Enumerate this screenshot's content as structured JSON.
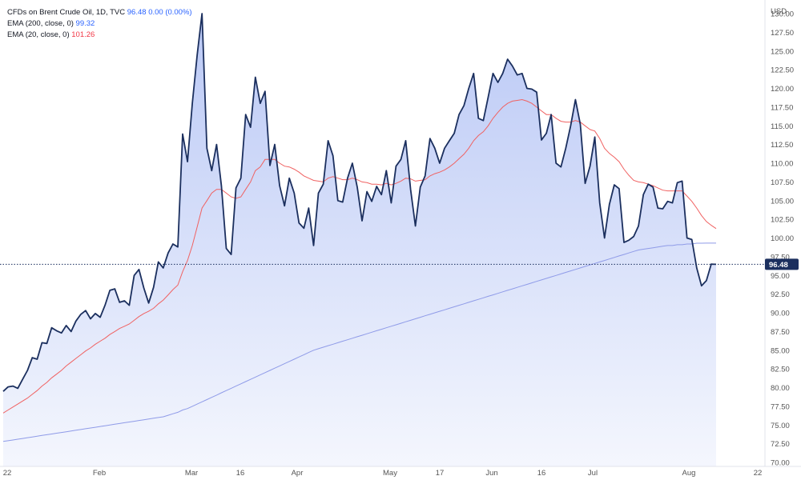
{
  "legend": {
    "main_label": "CFDs on Brent Crude Oil, 1D, TVC",
    "main_value": "96.48",
    "main_change": "0.00 (0.00%)",
    "ema200_label": "EMA (200, close, 0)",
    "ema200_value": "99.32",
    "ema20_label": "EMA (20, close, 0)",
    "ema20_value": "101.26"
  },
  "currency": "USD",
  "last_price_label": "96.48",
  "colors": {
    "price": "#1b2f5e",
    "area_top": "#b7c6f5",
    "ema200": "#8f9be8",
    "ema20": "#f06262",
    "last_label_bg": "#1b2f5e"
  },
  "chart_data": {
    "type": "line",
    "x_tick_labels": [
      "22",
      "Feb",
      "Mar",
      "16",
      "Apr",
      "May",
      "17",
      "Jun",
      "16",
      "Jul",
      "Aug",
      "22"
    ],
    "y_tick_labels": [
      "130.00",
      "127.50",
      "125.00",
      "122.50",
      "120.00",
      "117.50",
      "115.00",
      "112.50",
      "110.00",
      "107.50",
      "105.00",
      "102.50",
      "100.00",
      "97.50",
      "95.00",
      "92.50",
      "90.00",
      "87.50",
      "85.00",
      "82.50",
      "80.00",
      "77.50",
      "75.00",
      "72.50",
      "70.00"
    ],
    "ylim": [
      69.5,
      130.5
    ],
    "last_value": 96.48,
    "series": [
      {
        "name": "CFDs on Brent Crude Oil",
        "values": [
          79.5,
          80.1,
          80.2,
          79.9,
          81.1,
          82.3,
          84.0,
          83.8,
          86.0,
          85.9,
          88.0,
          87.6,
          87.3,
          88.3,
          87.5,
          88.9,
          89.8,
          90.3,
          89.2,
          89.9,
          89.4,
          91.0,
          93.0,
          93.2,
          91.4,
          91.6,
          91.0,
          95.0,
          95.8,
          93.3,
          91.3,
          93.4,
          96.8,
          96.0,
          98.0,
          99.2,
          98.8,
          113.9,
          110.2,
          118.0,
          124.5,
          130.0,
          112.0,
          109.0,
          112.5,
          107.0,
          98.6,
          97.8,
          106.7,
          108.0,
          116.5,
          114.8,
          121.5,
          118.0,
          119.6,
          109.7,
          112.5,
          107.0,
          104.3,
          108.0,
          106.0,
          102.0,
          101.3,
          104.0,
          99.0,
          106.0,
          107.2,
          113.0,
          111.0,
          105.0,
          104.8,
          108.0,
          110.0,
          106.8,
          102.3,
          106.2,
          104.9,
          106.9,
          105.8,
          109.0,
          104.7,
          109.6,
          110.5,
          113.0,
          106.5,
          101.6,
          106.8,
          108.3,
          113.3,
          112.0,
          110.0,
          112.0,
          113.0,
          114.0,
          116.5,
          117.7,
          120.0,
          122.0,
          116.0,
          115.7,
          118.8,
          122.0,
          120.8,
          122.0,
          123.9,
          123.0,
          121.8,
          122.0,
          120.0,
          119.9,
          119.5,
          113.1,
          114.0,
          116.5,
          110.0,
          109.5,
          112.0,
          115.0,
          118.5,
          115.2,
          107.3,
          109.6,
          113.5,
          104.7,
          100.0,
          104.5,
          107.1,
          106.6,
          99.4,
          99.7,
          100.2,
          101.6,
          105.8,
          107.2,
          106.8,
          104.0,
          103.9,
          104.9,
          104.7,
          107.4,
          107.6,
          100.0,
          99.8,
          96.0,
          93.6,
          94.3,
          96.5,
          96.48
        ]
      },
      {
        "name": "EMA (200, close, 0)",
        "values": [
          72.8,
          72.9,
          73.0,
          73.1,
          73.2,
          73.3,
          73.4,
          73.5,
          73.6,
          73.7,
          73.8,
          73.9,
          74.0,
          74.1,
          74.2,
          74.3,
          74.4,
          74.5,
          74.6,
          74.7,
          74.8,
          74.9,
          75.0,
          75.1,
          75.2,
          75.3,
          75.4,
          75.5,
          75.6,
          75.7,
          75.8,
          75.9,
          76.0,
          76.1,
          76.3,
          76.5,
          76.7,
          77.0,
          77.2,
          77.5,
          77.8,
          78.1,
          78.4,
          78.7,
          79.0,
          79.3,
          79.6,
          79.9,
          80.2,
          80.5,
          80.8,
          81.1,
          81.4,
          81.7,
          82.0,
          82.3,
          82.6,
          82.9,
          83.2,
          83.5,
          83.8,
          84.1,
          84.4,
          84.7,
          85.0,
          85.2,
          85.4,
          85.6,
          85.8,
          86.0,
          86.2,
          86.4,
          86.6,
          86.8,
          87.0,
          87.2,
          87.4,
          87.6,
          87.8,
          88.0,
          88.2,
          88.4,
          88.6,
          88.8,
          89.0,
          89.2,
          89.4,
          89.6,
          89.8,
          90.0,
          90.2,
          90.4,
          90.6,
          90.8,
          91.0,
          91.2,
          91.4,
          91.6,
          91.8,
          92.0,
          92.2,
          92.4,
          92.6,
          92.8,
          93.0,
          93.2,
          93.4,
          93.6,
          93.8,
          94.0,
          94.2,
          94.4,
          94.6,
          94.8,
          95.0,
          95.2,
          95.4,
          95.6,
          95.8,
          96.0,
          96.2,
          96.4,
          96.6,
          96.8,
          97.0,
          97.2,
          97.4,
          97.6,
          97.8,
          98.0,
          98.2,
          98.4,
          98.5,
          98.6,
          98.7,
          98.8,
          98.9,
          99.0,
          99.0,
          99.1,
          99.1,
          99.2,
          99.2,
          99.3,
          99.3,
          99.32,
          99.32,
          99.32
        ]
      },
      {
        "name": "EMA (20, close, 0)",
        "values": [
          76.6,
          77.0,
          77.4,
          77.8,
          78.2,
          78.6,
          79.1,
          79.6,
          80.2,
          80.7,
          81.3,
          81.8,
          82.3,
          82.9,
          83.4,
          83.9,
          84.4,
          84.9,
          85.3,
          85.8,
          86.2,
          86.6,
          87.1,
          87.5,
          87.9,
          88.2,
          88.5,
          89.0,
          89.5,
          89.9,
          90.2,
          90.6,
          91.2,
          91.7,
          92.4,
          93.1,
          93.7,
          95.5,
          97.0,
          99.0,
          101.5,
          104.0,
          105.0,
          106.0,
          106.5,
          106.5,
          106.0,
          105.5,
          105.3,
          105.5,
          106.5,
          107.5,
          109.0,
          109.5,
          110.5,
          110.5,
          110.5,
          110.0,
          109.6,
          109.5,
          109.2,
          108.8,
          108.3,
          108.0,
          107.7,
          107.6,
          107.5,
          108.0,
          108.2,
          108.0,
          107.8,
          107.8,
          108.0,
          107.8,
          107.5,
          107.4,
          107.2,
          107.2,
          107.1,
          107.3,
          107.1,
          107.3,
          107.6,
          108.0,
          107.9,
          107.6,
          107.7,
          107.8,
          108.3,
          108.6,
          108.8,
          109.1,
          109.5,
          110.0,
          110.6,
          111.2,
          112.0,
          113.0,
          113.7,
          114.2,
          115.0,
          116.0,
          116.8,
          117.5,
          118.0,
          118.3,
          118.4,
          118.5,
          118.3,
          118.0,
          117.5,
          117.0,
          116.5,
          116.5,
          116.0,
          115.6,
          115.5,
          115.5,
          115.7,
          115.5,
          115.0,
          114.5,
          114.3,
          113.3,
          112.0,
          111.3,
          110.8,
          110.2,
          109.2,
          108.4,
          107.7,
          107.5,
          107.4,
          107.2,
          107.0,
          106.7,
          106.4,
          106.3,
          106.3,
          106.3,
          106.3,
          105.6,
          104.9,
          104.0,
          103.0,
          102.2,
          101.7,
          101.26
        ]
      }
    ]
  }
}
